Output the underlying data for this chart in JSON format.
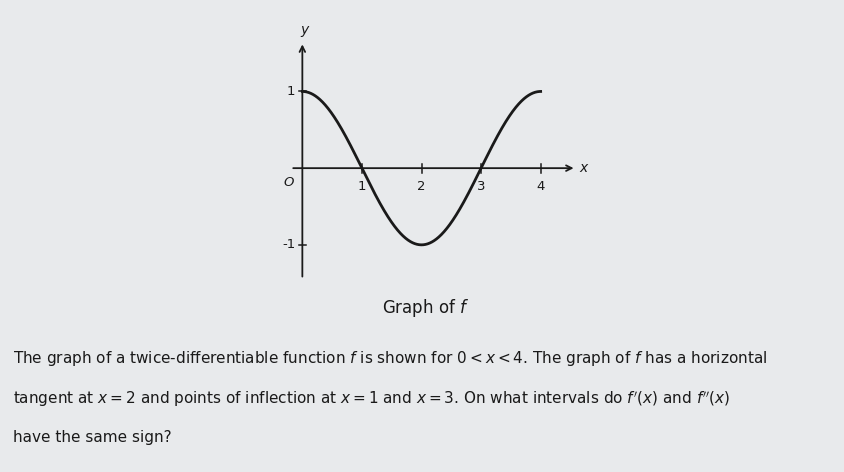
{
  "xlim": [
    -0.4,
    4.7
  ],
  "ylim": [
    -1.5,
    1.7
  ],
  "x_ticks": [
    1,
    2,
    3,
    4
  ],
  "y_ticks": [
    -1,
    1
  ],
  "curve_color": "#1a1a1a",
  "curve_linewidth": 2.0,
  "background_color": "#e8eaec",
  "axis_color": "#1a1a1a",
  "tick_fontsize": 9.5,
  "label_fontsize": 10,
  "title_fontsize": 12,
  "title_text": "Graph of $f$",
  "body_fontsize": 11,
  "body_line1": "The graph of a twice-differentiable function $f$ is shown for $0 < x < 4$. The graph of $f$ has a horizontal",
  "body_line2": "tangent at $x = 2$ and points of inflection at $x = 1$ and $x = 3$. On what intervals do $f'(x)$ and $f''(x)$",
  "body_line3": "have the same sign?"
}
